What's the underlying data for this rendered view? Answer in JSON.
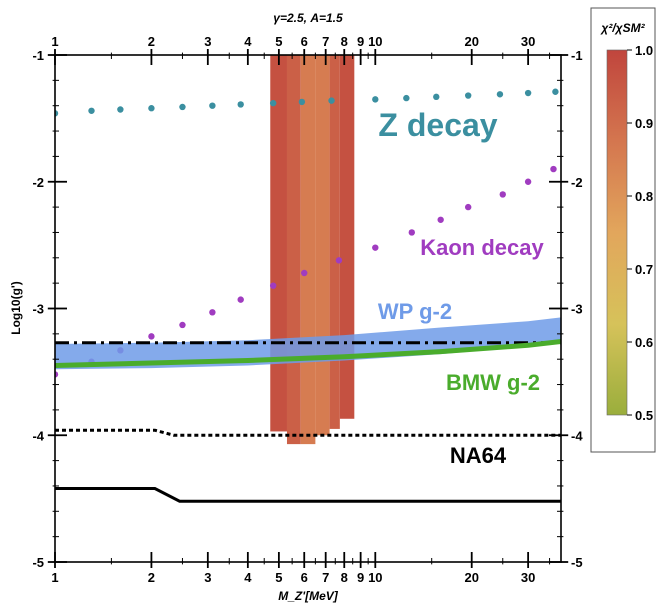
{
  "chart_data": {
    "type": "heatmap",
    "title": "γ=2.5, A=1.5",
    "xlabel": "M_Z'[MeV]",
    "ylabel": "Log10(g')",
    "x_scale": "log",
    "xlim": [
      1,
      38
    ],
    "ylim": [
      -5,
      -1
    ],
    "x_ticks_major": [
      1,
      2,
      3,
      4,
      5,
      6,
      7,
      8,
      9,
      10,
      20,
      30
    ],
    "x_tick_labels": [
      "1",
      "2",
      "3",
      "4",
      "5",
      "6",
      "7",
      "8",
      "9",
      "10",
      "20",
      "30"
    ],
    "y_ticks_major": [
      -1,
      -2,
      -3,
      -4,
      -5
    ],
    "y_tick_labels": [
      "-1",
      "-2",
      "-3",
      "-4",
      "-5"
    ],
    "colorbar": {
      "label": "χ²/χSM²",
      "min": 0.5,
      "max": 1.0,
      "ticks": [
        1.0,
        0.9,
        0.8,
        0.7,
        0.6,
        0.5
      ],
      "tick_labels": [
        "1.0",
        "0.9",
        "0.8",
        "0.7",
        "0.6",
        "0.5"
      ],
      "colors": [
        "#9aae3c",
        "#d6c25a",
        "#e2a65c",
        "#d4764f",
        "#c0453d"
      ]
    },
    "heatmap_columns": [
      {
        "x0": 4.7,
        "x1": 5.3,
        "ymin": -3.97,
        "ymax": -1.0,
        "value": 0.97
      },
      {
        "x0": 5.3,
        "x1": 5.85,
        "ymin": -4.07,
        "ymax": -1.0,
        "value": 0.93
      },
      {
        "x0": 5.85,
        "x1": 6.5,
        "ymin": -4.07,
        "ymax": -1.0,
        "value": 0.86
      },
      {
        "x0": 6.5,
        "x1": 7.2,
        "ymin": -4.0,
        "ymax": -1.0,
        "value": 0.86
      },
      {
        "x0": 7.2,
        "x1": 7.75,
        "ymin": -3.95,
        "ymax": -1.0,
        "value": 0.93
      },
      {
        "x0": 7.75,
        "x1": 8.6,
        "ymin": -3.87,
        "ymax": -1.0,
        "value": 0.97
      }
    ],
    "series": [
      {
        "name": "Z decay",
        "style": "dots",
        "color": "#3b8fa0",
        "x": [
          1.0,
          1.3,
          1.6,
          2.0,
          2.5,
          3.1,
          3.8,
          4.8,
          5.9,
          7.3,
          10.0,
          12.5,
          15.5,
          19.5,
          24.5,
          30.0,
          36.5
        ],
        "y": [
          -1.46,
          -1.44,
          -1.43,
          -1.42,
          -1.41,
          -1.4,
          -1.39,
          -1.38,
          -1.37,
          -1.36,
          -1.35,
          -1.34,
          -1.33,
          -1.32,
          -1.31,
          -1.3,
          -1.29
        ]
      },
      {
        "name": "Kaon decay",
        "style": "dots",
        "color": "#a03cc0",
        "x": [
          1.0,
          1.3,
          1.6,
          2.0,
          2.5,
          3.1,
          3.8,
          4.8,
          6.0,
          7.7,
          10.0,
          13.0,
          16.0,
          19.5,
          25.0,
          30.0,
          36.0
        ],
        "y": [
          -3.52,
          -3.42,
          -3.33,
          -3.22,
          -3.13,
          -3.03,
          -2.93,
          -2.82,
          -2.72,
          -2.62,
          -2.52,
          -2.4,
          -2.3,
          -2.2,
          -2.1,
          -2.0,
          -1.9
        ]
      },
      {
        "name": "WP g-2",
        "style": "band",
        "color": "#6f9be8",
        "x": [
          1.0,
          2.0,
          4.0,
          8.0,
          16.0,
          30.0,
          38.0
        ],
        "ylo": [
          -3.48,
          -3.47,
          -3.45,
          -3.41,
          -3.36,
          -3.3,
          -3.27
        ],
        "yhi": [
          -3.28,
          -3.27,
          -3.25,
          -3.21,
          -3.15,
          -3.1,
          -3.07
        ]
      },
      {
        "name": "",
        "style": "dashdot",
        "color": "#000000",
        "x": [
          1.0,
          38.0
        ],
        "y": [
          -3.27,
          -3.27
        ]
      },
      {
        "name": "BMW g-2",
        "style": "line",
        "color": "#4aac2c",
        "x": [
          1.0,
          2.0,
          4.0,
          8.0,
          16.0,
          30.0,
          38.0
        ],
        "y": [
          -3.45,
          -3.43,
          -3.41,
          -3.38,
          -3.34,
          -3.29,
          -3.26
        ]
      },
      {
        "name": "",
        "style": "dotted",
        "color": "#000000",
        "x": [
          1.0,
          2.05,
          2.35,
          38.0
        ],
        "y": [
          -3.96,
          -3.96,
          -4.0,
          -4.0
        ]
      },
      {
        "name": "NA64",
        "style": "line",
        "color": "#000000",
        "x": [
          1.0,
          2.05,
          2.45,
          38.0
        ],
        "y": [
          -4.42,
          -4.42,
          -4.52,
          -4.52
        ]
      }
    ],
    "annotations": [
      {
        "text": "Z decay",
        "color": "#3b8fa0"
      },
      {
        "text": "Kaon decay",
        "color": "#a03cc0"
      },
      {
        "text": "WP g-2",
        "color": "#6f9be8"
      },
      {
        "text": "BMW g-2",
        "color": "#4aac2c"
      },
      {
        "text": "NA64",
        "color": "#000000"
      }
    ],
    "grid": false
  }
}
